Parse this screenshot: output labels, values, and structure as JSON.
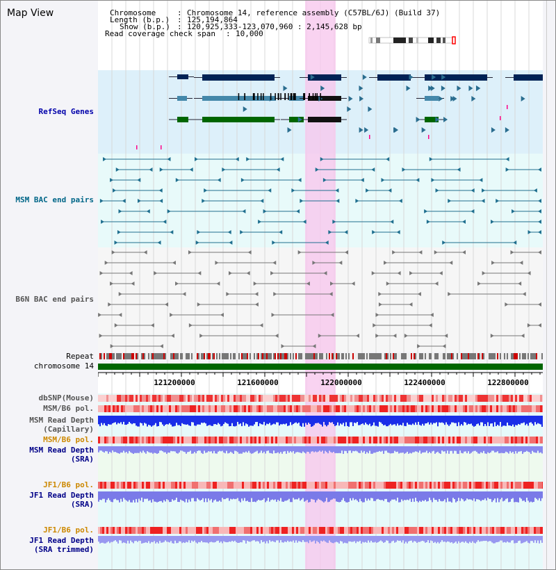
{
  "view_title": "Map View",
  "header": {
    "chromosome_label": "Chromosome",
    "chromosome_value": "Chromosome 14, reference assembly (C57BL/6J) (Build 37)",
    "length_label": "Length (b.p.)",
    "length_value": "125,194,864",
    "show_label": "Show (b.p.)",
    "show_value": "120,925,333-123,070,960 : 2,145,628 bp",
    "span_label": "Read coverage check span",
    "span_value": "10,000",
    "sep": ":"
  },
  "tracks": {
    "refseq": "RefSeq Genes",
    "msm_bac": "MSM BAC end pairs",
    "b6n_bac": "B6N BAC end pairs",
    "repeat": "Repeat",
    "chromosome": "chromosome 14",
    "dbsnp": "dbSNP(Mouse)",
    "msm_b6_pol": "MSM/B6 pol.",
    "msm_depth_cap_1": "MSM Read Depth",
    "msm_depth_cap_2": "(Capillary)",
    "msm_b6_pol_sra": "MSM/B6 pol.",
    "msm_depth_sra_1": "MSM Read Depth",
    "msm_depth_sra_2": "(SRA)",
    "jf1_b6_pol": "JF1/B6 pol.",
    "jf1_depth_sra_1": "JF1 Read Depth",
    "jf1_depth_sra_2": "(SRA)",
    "jf1_b6_pol_trim": "JF1/B6 pol.",
    "jf1_depth_trim_1": "JF1 Read Depth",
    "jf1_depth_trim_2": "(SRA trimmed)"
  },
  "axis": {
    "ticks": [
      "121200000",
      "121600000",
      "122000000",
      "122400000",
      "122800000"
    ]
  },
  "colors": {
    "refseq_label": "#0000aa",
    "msm_label": "#006688",
    "b6n_label": "#555555",
    "sra_label": "#cc8800",
    "depth_label": "#000088",
    "highlight": "#f8c8ee",
    "gene_dark": "#002255",
    "gene_mid": "#4488aa",
    "gene_green": "#006600",
    "chrom_green": "#006600"
  }
}
